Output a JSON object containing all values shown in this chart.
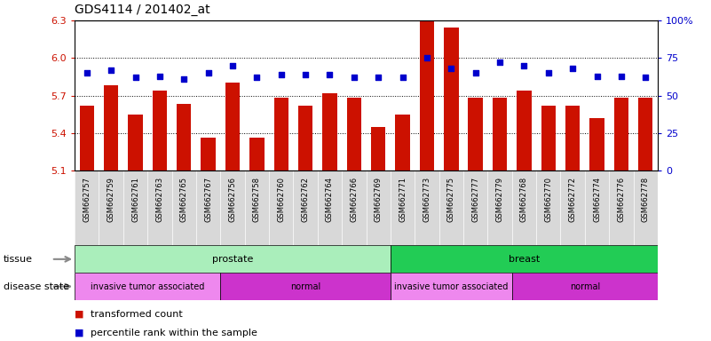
{
  "title": "GDS4114 / 201402_at",
  "samples": [
    "GSM662757",
    "GSM662759",
    "GSM662761",
    "GSM662763",
    "GSM662765",
    "GSM662767",
    "GSM662756",
    "GSM662758",
    "GSM662760",
    "GSM662762",
    "GSM662764",
    "GSM662766",
    "GSM662769",
    "GSM662771",
    "GSM662773",
    "GSM662775",
    "GSM662777",
    "GSM662779",
    "GSM662768",
    "GSM662770",
    "GSM662772",
    "GSM662774",
    "GSM662776",
    "GSM662778"
  ],
  "bar_values": [
    5.62,
    5.78,
    5.55,
    5.74,
    5.63,
    5.36,
    5.8,
    5.36,
    5.68,
    5.62,
    5.72,
    5.68,
    5.45,
    5.55,
    6.3,
    6.24,
    5.68,
    5.68,
    5.74,
    5.62,
    5.62,
    5.52,
    5.68,
    5.68
  ],
  "percentile_values": [
    65,
    67,
    62,
    63,
    61,
    65,
    70,
    62,
    64,
    64,
    64,
    62,
    62,
    62,
    75,
    68,
    65,
    72,
    70,
    65,
    68,
    63,
    63,
    62
  ],
  "bar_color": "#CC1100",
  "dot_color": "#0000CC",
  "ylim_left": [
    5.1,
    6.3
  ],
  "ylim_right": [
    0,
    100
  ],
  "yticks_left": [
    5.1,
    5.4,
    5.7,
    6.0,
    6.3
  ],
  "yticks_right": [
    0,
    25,
    50,
    75,
    100
  ],
  "ytick_labels_left": [
    "5.1",
    "5.4",
    "5.7",
    "6.0",
    "6.3"
  ],
  "ytick_labels_right": [
    "0",
    "25",
    "50",
    "75",
    "100%"
  ],
  "grid_yticks": [
    5.4,
    5.7,
    6.0
  ],
  "tissue_groups": [
    {
      "label": "prostate",
      "start": 0,
      "end": 13,
      "color": "#aaeebb"
    },
    {
      "label": "breast",
      "start": 13,
      "end": 24,
      "color": "#22cc55"
    }
  ],
  "disease_groups": [
    {
      "label": "invasive tumor associated",
      "start": 0,
      "end": 6,
      "color": "#ee88ee"
    },
    {
      "label": "normal",
      "start": 6,
      "end": 13,
      "color": "#cc33cc"
    },
    {
      "label": "invasive tumor associated",
      "start": 13,
      "end": 18,
      "color": "#ee88ee"
    },
    {
      "label": "normal",
      "start": 18,
      "end": 24,
      "color": "#cc33cc"
    }
  ],
  "xtick_bg_color": "#D8D8D8",
  "tissue_label": "tissue",
  "disease_label": "disease state",
  "legend_red_label": "transformed count",
  "legend_blue_label": "percentile rank within the sample"
}
